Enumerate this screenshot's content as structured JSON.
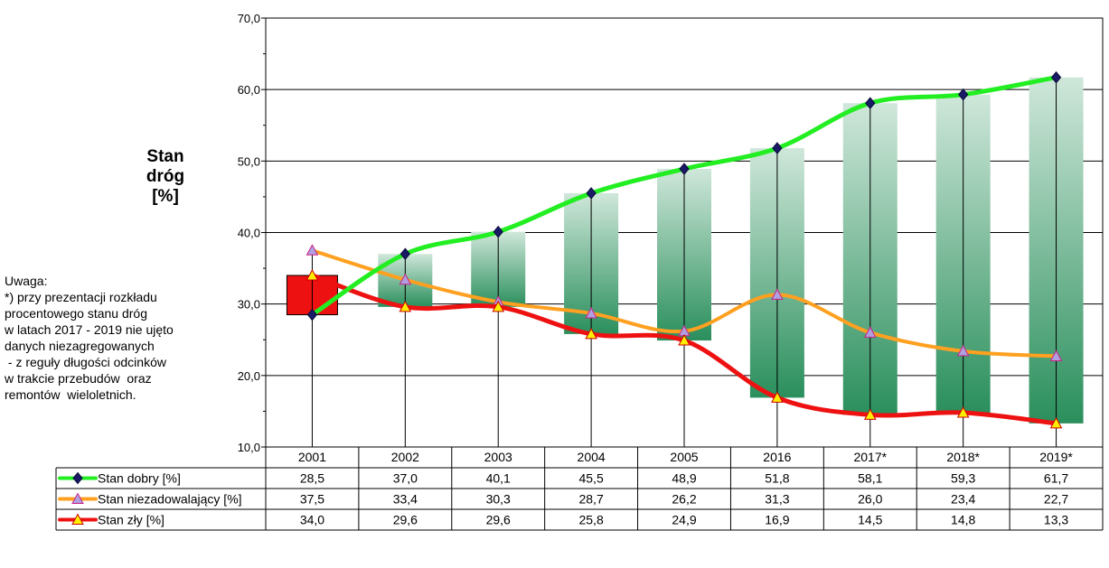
{
  "chart_data": {
    "type": "line",
    "ylabel_lines": [
      "Stan",
      "dróg",
      "[%]"
    ],
    "ylim": [
      10,
      70
    ],
    "y_ticks": [
      "10,0",
      "20,0",
      "30,0",
      "40,0",
      "50,0",
      "60,0",
      "70,0"
    ],
    "categories": [
      "2001",
      "2002",
      "2003",
      "2004",
      "2005",
      "2016",
      "2017*",
      "2018*",
      "2019*"
    ],
    "grid": true,
    "series": [
      {
        "name": "Stan dobry [%]",
        "color": "#22ee22",
        "marker": "diamond",
        "values": [
          28.5,
          37.0,
          40.1,
          45.5,
          48.9,
          51.8,
          58.1,
          59.3,
          61.7
        ],
        "labels": [
          "28,5",
          "37,0",
          "40,1",
          "45,5",
          "48,9",
          "51,8",
          "58,1",
          "59,3",
          "61,7"
        ]
      },
      {
        "name": "Stan niezadowalający [%]",
        "color": "#ffa020",
        "marker": "triangle",
        "values": [
          37.5,
          33.4,
          30.3,
          28.7,
          26.2,
          31.3,
          26.0,
          23.4,
          22.7
        ],
        "labels": [
          "37,5",
          "33,4",
          "30,3",
          "28,7",
          "26,2",
          "31,3",
          "26,0",
          "23,4",
          "22,7"
        ]
      },
      {
        "name": "Stan zły  [%]",
        "color": "#ee1111",
        "marker": "triangle",
        "values": [
          34.0,
          29.6,
          29.6,
          25.8,
          24.9,
          16.9,
          14.5,
          14.8,
          13.3
        ],
        "labels": [
          "34,0",
          "29,6",
          "29,6",
          "25,8",
          "24,9",
          "16,9",
          "14,5",
          "14,8",
          "13,3"
        ]
      }
    ],
    "table": "below chart, one row per series"
  },
  "note_lines": [
    "Uwaga:",
    "*) przy prezentacji rozkładu",
    "procentowego stanu dróg",
    "w latach 2017 - 2019 nie ujęto",
    "danych niezagregowanych",
    " - z reguły długości odcinków",
    "w trakcie przebudów  oraz",
    "remontów  wieloletnich."
  ]
}
